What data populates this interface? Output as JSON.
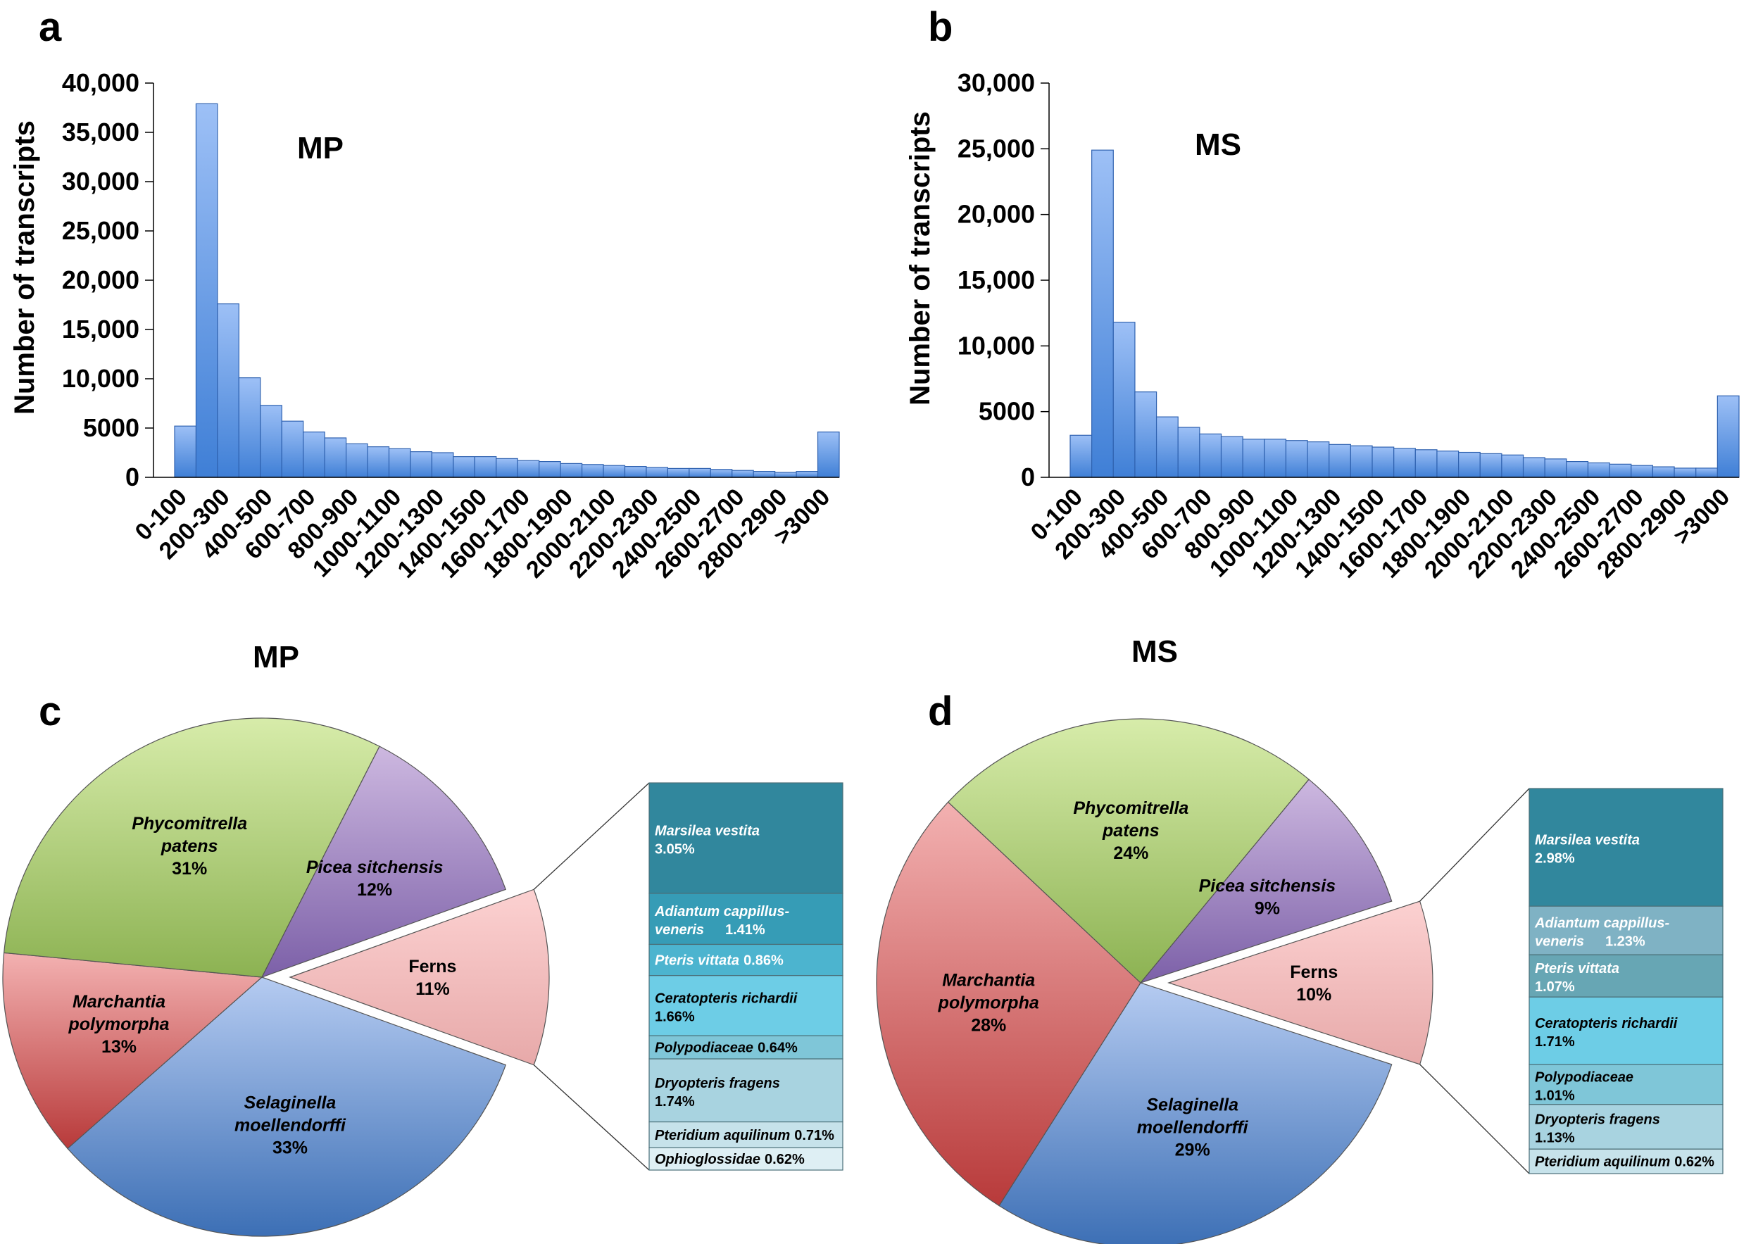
{
  "chart_data": [
    {
      "panel": "a",
      "type": "bar",
      "title": "MP",
      "ylabel": "Number of transcripts",
      "xlabel": "",
      "ylim": [
        0,
        40000
      ],
      "ytick_labels": [
        "0",
        "5000",
        "10,000",
        "15,000",
        "20,000",
        "25,000",
        "30,000",
        "35,000",
        "40,000"
      ],
      "categories": [
        "0-100",
        "100-200",
        "200-300",
        "300-400",
        "400-500",
        "500-600",
        "600-700",
        "700-800",
        "800-900",
        "900-1000",
        "1000-1100",
        "1100-1200",
        "1200-1300",
        "1300-1400",
        "1400-1500",
        "1500-1600",
        "1600-1700",
        "1700-1800",
        "1800-1900",
        "1900-2000",
        "2000-2100",
        "2100-2200",
        "2200-2300",
        "2300-2400",
        "2400-2500",
        "2500-2600",
        "2600-2700",
        "2700-2800",
        "2800-2900",
        "2900-3000",
        ">3000"
      ],
      "xtick_labels": [
        "0-100",
        "200-300",
        "400-500",
        "600-700",
        "800-900",
        "1000-1100",
        "1200-1300",
        "1400-1500",
        "1600-1700",
        "1800-1900",
        "2000-2100",
        "2200-2300",
        "2400-2500",
        "2600-2700",
        "2800-2900",
        ">3000"
      ],
      "values": [
        5200,
        37900,
        17600,
        10100,
        7300,
        5700,
        4600,
        4000,
        3400,
        3100,
        2900,
        2600,
        2500,
        2100,
        2100,
        1900,
        1700,
        1600,
        1400,
        1300,
        1200,
        1100,
        1000,
        900,
        900,
        800,
        700,
        600,
        500,
        600,
        4600
      ]
    },
    {
      "panel": "b",
      "type": "bar",
      "title": "MS",
      "ylabel": "Number of transcripts",
      "xlabel": "",
      "ylim": [
        0,
        30000
      ],
      "ytick_labels": [
        "0",
        "5000",
        "10,000",
        "15,000",
        "20,000",
        "25,000",
        "30,000"
      ],
      "categories": [
        "0-100",
        "100-200",
        "200-300",
        "300-400",
        "400-500",
        "500-600",
        "600-700",
        "700-800",
        "800-900",
        "900-1000",
        "1000-1100",
        "1100-1200",
        "1200-1300",
        "1300-1400",
        "1400-1500",
        "1500-1600",
        "1600-1700",
        "1700-1800",
        "1800-1900",
        "1900-2000",
        "2000-2100",
        "2100-2200",
        "2200-2300",
        "2300-2400",
        "2400-2500",
        "2500-2600",
        "2600-2700",
        "2700-2800",
        "2800-2900",
        "2900-3000",
        ">3000"
      ],
      "xtick_labels": [
        "0-100",
        "200-300",
        "400-500",
        "600-700",
        "800-900",
        "1000-1100",
        "1200-1300",
        "1400-1500",
        "1600-1700",
        "1800-1900",
        "2000-2100",
        "2200-2300",
        "2400-2500",
        "2600-2700",
        "2800-2900",
        ">3000"
      ],
      "values": [
        3200,
        24900,
        11800,
        6500,
        4600,
        3800,
        3300,
        3100,
        2900,
        2900,
        2800,
        2700,
        2500,
        2400,
        2300,
        2200,
        2100,
        2000,
        1900,
        1800,
        1700,
        1500,
        1400,
        1200,
        1100,
        1000,
        900,
        800,
        700,
        700,
        6200
      ]
    },
    {
      "panel": "c",
      "type": "pie",
      "title": "MP",
      "slices": [
        {
          "label_lines": [
            "Phycomitrella",
            "patens"
          ],
          "value": 31,
          "value_label": "31%",
          "color_light": "#d7ecaa",
          "color_dark": "#8cb252"
        },
        {
          "label_lines": [
            "Picea sitchensis"
          ],
          "value": 12,
          "value_label": "12%",
          "color_light": "#cdb8e0",
          "color_dark": "#7c60a8"
        },
        {
          "label_lines": [
            "Ferns"
          ],
          "value": 11,
          "value_label": "11%",
          "italic": false,
          "exploded": true,
          "color_light": "#fcd1d1",
          "color_dark": "#e7a9a9"
        },
        {
          "label_lines": [
            "Selaginella",
            "moellendorffi"
          ],
          "value": 33,
          "value_label": "33%",
          "color_light": "#b5cbf1",
          "color_dark": "#3c6fb5"
        },
        {
          "label_lines": [
            "Marchantia",
            "polymorpha"
          ],
          "value": 13,
          "value_label": "13%",
          "color_light": "#f3b1b1",
          "color_dark": "#b83a3a"
        }
      ],
      "breakdown": [
        {
          "name": "Marsilea vestita",
          "pct": "3.05%",
          "value": 3.05,
          "color": "#31879d",
          "text_color": "#ffffff"
        },
        {
          "name": "Adiantum cappillus-",
          "name2": "veneris",
          "pct": "1.41%",
          "value": 1.41,
          "color": "#369cb6",
          "text_color": "#ffffff"
        },
        {
          "name": "Pteris vittata",
          "pct": "0.86%",
          "value": 0.86,
          "color": "#4cb4cf",
          "text_color": "#ffffff"
        },
        {
          "name": "Ceratopteris richardii",
          "pct": "1.66%",
          "value": 1.66,
          "color": "#6dcde6",
          "text_color": "#000000"
        },
        {
          "name": "Polypodiaceae",
          "pct": "0.64%",
          "value": 0.64,
          "color": "#7fc6d8",
          "text_color": "#000000"
        },
        {
          "name": "Dryopteris fragens",
          "pct": "1.74%",
          "value": 1.74,
          "color": "#a8d3e0",
          "text_color": "#000000"
        },
        {
          "name": "Pteridium aquilinum",
          "pct": "0.71%",
          "value": 0.71,
          "color": "#c6e2ea",
          "text_color": "#000000"
        },
        {
          "name": "Ophioglossidae",
          "pct": "0.62%",
          "value": 0.62,
          "color": "#deeff4",
          "text_color": "#000000"
        }
      ]
    },
    {
      "panel": "d",
      "type": "pie",
      "title": "MS",
      "slices": [
        {
          "label_lines": [
            "Phycomitrella",
            "patens"
          ],
          "value": 24,
          "value_label": "24%",
          "color_light": "#d7ecaa",
          "color_dark": "#8cb252"
        },
        {
          "label_lines": [
            "Picea sitchensis"
          ],
          "value": 9,
          "value_label": "9%",
          "color_light": "#cdb8e0",
          "color_dark": "#7c60a8"
        },
        {
          "label_lines": [
            "Ferns"
          ],
          "value": 10,
          "value_label": "10%",
          "italic": false,
          "exploded": true,
          "color_light": "#fcd1d1",
          "color_dark": "#e7a9a9"
        },
        {
          "label_lines": [
            "Selaginella",
            "moellendorffi"
          ],
          "value": 29,
          "value_label": "29%",
          "color_light": "#b5cbf1",
          "color_dark": "#3c6fb5"
        },
        {
          "label_lines": [
            "Marchantia",
            "polymorpha"
          ],
          "value": 28,
          "value_label": "28%",
          "color_light": "#f3b1b1",
          "color_dark": "#b83a3a"
        }
      ],
      "breakdown": [
        {
          "name": "Marsilea vestita",
          "pct": "2.98%",
          "value": 2.98,
          "color": "#31879d",
          "text_color": "#ffffff"
        },
        {
          "name": "Adiantum cappillus-",
          "name2": "veneris",
          "pct": "1.23%",
          "value": 1.23,
          "color": "#7fb2c4",
          "text_color": "#ffffff"
        },
        {
          "name": "Pteris vittata",
          "pct": "1.07%",
          "value": 1.07,
          "color": "#67a6b4",
          "text_color": "#ffffff"
        },
        {
          "name": "Ceratopteris richardii",
          "pct": "1.71%",
          "value": 1.71,
          "color": "#6dcde6",
          "text_color": "#000000"
        },
        {
          "name": "Polypodiaceae",
          "pct": "1.01%",
          "value": 1.01,
          "color": "#7fc6d8",
          "text_color": "#000000"
        },
        {
          "name": "Dryopteris fragens",
          "pct": "1.13%",
          "value": 1.13,
          "color": "#a8d3e0",
          "text_color": "#000000"
        },
        {
          "name": "Pteridium aquilinum",
          "pct": "0.62%",
          "value": 0.62,
          "color": "#c6e2ea",
          "text_color": "#000000"
        }
      ]
    }
  ]
}
